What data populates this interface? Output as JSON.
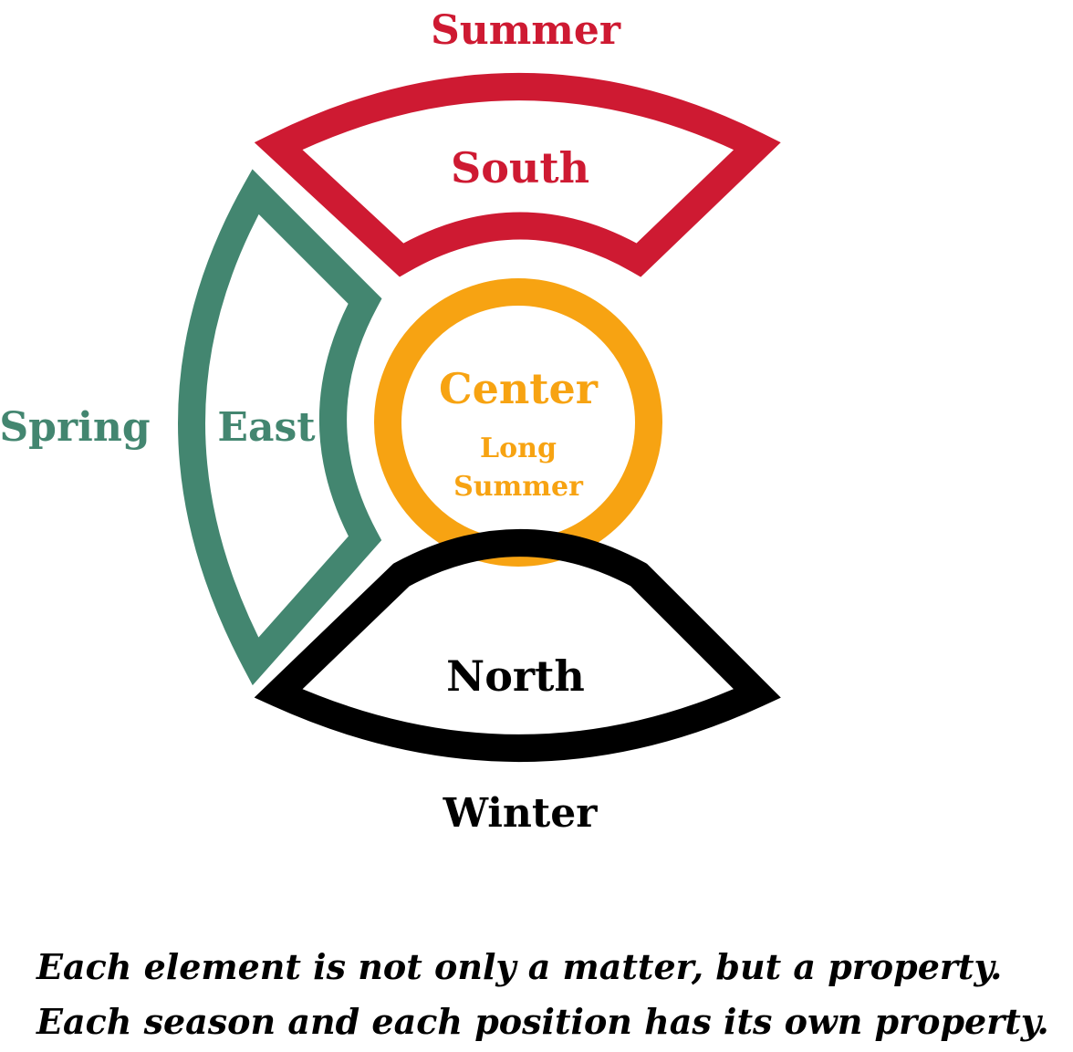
{
  "colors": {
    "south": "#ce1a32",
    "east": "#438670",
    "center": "#f7a312",
    "north": "#000000"
  },
  "labels": {
    "summer": "Summer",
    "south": "South",
    "spring": "Spring",
    "east": "East",
    "center": "Center",
    "center_sub_1": "Long",
    "center_sub_2": "Summer",
    "north": "North",
    "winter": "Winter"
  },
  "caption": {
    "line1": "Each element is not only a matter, but a property.",
    "line2": "Each season and each position has its own property."
  }
}
